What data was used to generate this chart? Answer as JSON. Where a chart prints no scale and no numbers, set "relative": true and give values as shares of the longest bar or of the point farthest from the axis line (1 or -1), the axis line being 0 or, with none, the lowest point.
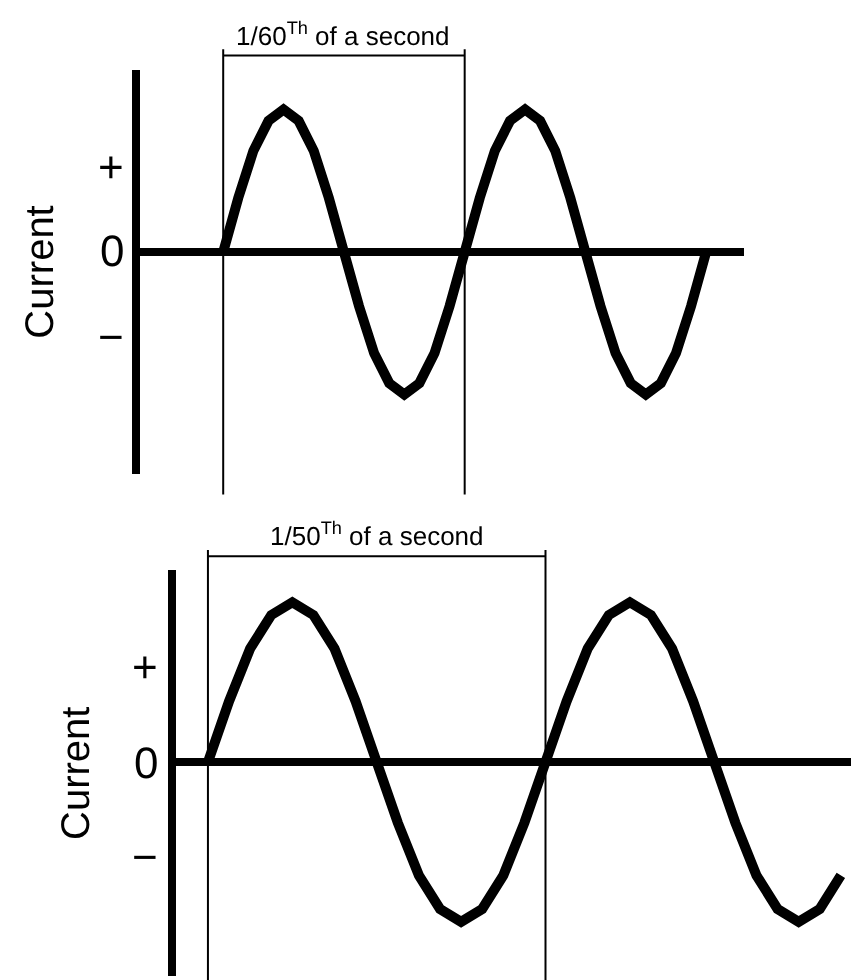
{
  "chart_data": [
    {
      "type": "line",
      "relative": true,
      "ylabel": "Current",
      "tick_labels": "y",
      "marker": "none",
      "line_style": "solid",
      "categories": [
        null,
        null,
        null,
        null,
        null,
        null,
        null,
        null,
        null,
        null,
        null,
        null,
        null,
        null,
        null,
        null,
        null,
        null,
        null,
        null,
        null,
        null,
        null,
        null,
        null,
        null,
        null,
        null,
        null,
        null,
        null,
        null,
        null,
        null,
        null,
        null,
        null,
        null,
        null,
        null
      ],
      "series": [
        {
          "color": "#000000",
          "values": [
            null,
            null,
            null,
            null,
            null,
            0,
            0.38,
            0.71,
            0.92,
            1,
            0.92,
            0.71,
            0.38,
            0,
            -0.38,
            -0.71,
            -0.92,
            -1,
            -0.92,
            -0.71,
            -0.38,
            0,
            0.38,
            0.71,
            0.92,
            1,
            0.92,
            0.71,
            0.38,
            0,
            -0.38,
            -0.71,
            -0.92,
            -1,
            -0.92,
            -0.71,
            -0.38,
            0,
            null,
            null
          ]
        }
      ],
      "annotations": [
        "1/60$^{Th}$ of a second",
        "+",
        "0",
        "−"
      ]
    },
    {
      "type": "line",
      "relative": true,
      "ylabel": "Current",
      "tick_labels": "y",
      "marker": "none",
      "line_style": "solid",
      "categories": [
        null,
        null,
        null,
        null,
        null,
        null,
        null,
        null,
        null,
        null,
        null,
        null,
        null,
        null,
        null,
        null,
        null,
        null,
        null,
        null,
        null,
        null,
        null,
        null,
        null,
        null,
        null,
        null,
        null,
        null,
        null,
        null
      ],
      "series": [
        {
          "color": "#000000",
          "values": [
            null,
            0,
            0.38,
            0.71,
            0.92,
            1,
            0.92,
            0.71,
            0.38,
            0,
            -0.38,
            -0.71,
            -0.92,
            -1,
            -0.92,
            -0.71,
            -0.38,
            0,
            0.38,
            0.71,
            0.92,
            1,
            0.92,
            0.71,
            0.38,
            0,
            -0.38,
            -0.71,
            -0.92,
            -1,
            -0.92,
            -0.71
          ]
        }
      ],
      "annotations": [
        "1/50$^{Th}$ of a second",
        "+",
        "0",
        "−"
      ]
    }
  ]
}
